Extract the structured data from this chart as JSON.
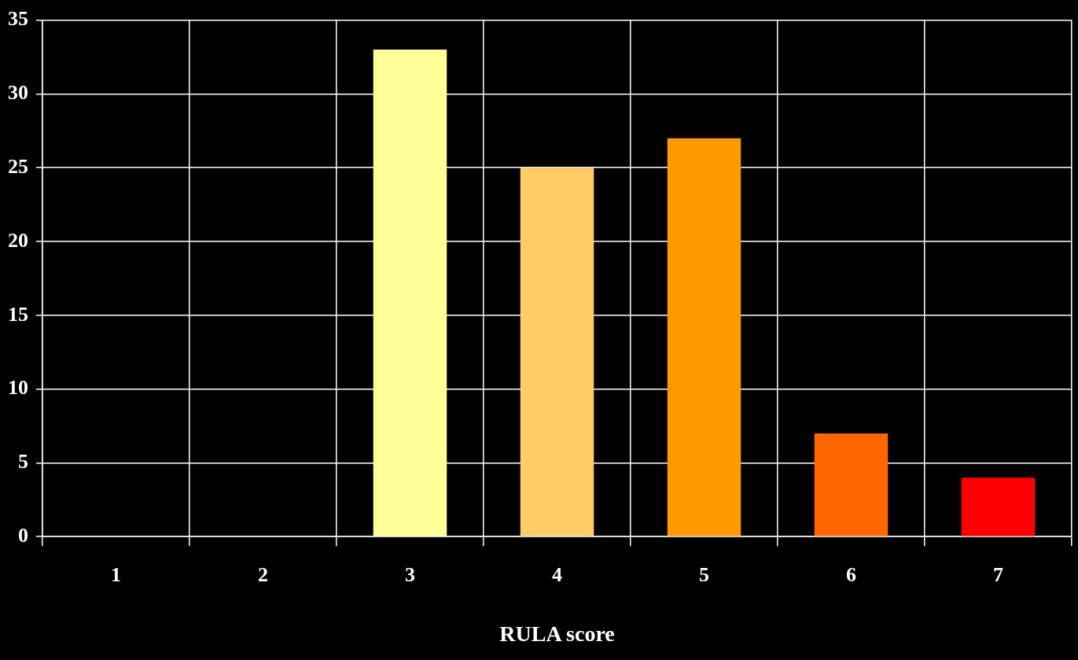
{
  "chart_data": {
    "type": "bar",
    "xlabel": "RULA score",
    "categories": [
      "1",
      "2",
      "3",
      "4",
      "5",
      "6",
      "7"
    ],
    "values": [
      0,
      0,
      33,
      25,
      27,
      7,
      4
    ],
    "colors": [
      "#ffff99",
      "#ffff99",
      "#ffff99",
      "#ffcc66",
      "#ff9900",
      "#ff6600",
      "#ff0000"
    ],
    "ylim": [
      0,
      35
    ],
    "yticks": [
      0,
      5,
      10,
      15,
      20,
      25,
      30,
      35
    ],
    "grid": true,
    "legend": false
  }
}
